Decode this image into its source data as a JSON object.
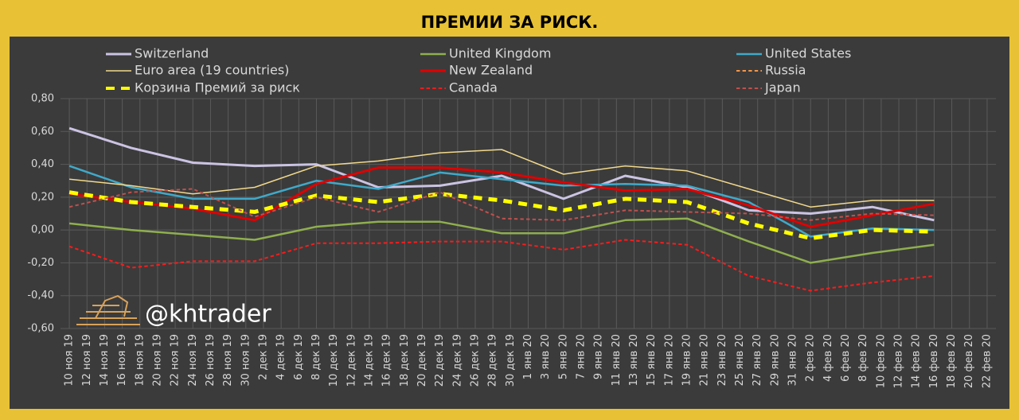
{
  "chart_data": {
    "type": "line",
    "title": "ПРЕМИИ ЗА РИСК.",
    "watermark": "@khtrader",
    "x": [
      0,
      7,
      14,
      21,
      28,
      35,
      42,
      49,
      56,
      63,
      70,
      77,
      84,
      91,
      98
    ],
    "xlim": [
      -1,
      105
    ],
    "xticks": [
      {
        "value": 0,
        "label": "10 ноя 19"
      },
      {
        "value": 2,
        "label": "12 ноя 19"
      },
      {
        "value": 4,
        "label": "14 ноя 19"
      },
      {
        "value": 6,
        "label": "16 ноя 19"
      },
      {
        "value": 8,
        "label": "18 ноя 19"
      },
      {
        "value": 10,
        "label": "20 ноя 19"
      },
      {
        "value": 12,
        "label": "22 ноя 19"
      },
      {
        "value": 14,
        "label": "24 ноя 19"
      },
      {
        "value": 16,
        "label": "26 ноя 19"
      },
      {
        "value": 18,
        "label": "28 ноя 19"
      },
      {
        "value": 20,
        "label": "30 ноя 19"
      },
      {
        "value": 22,
        "label": "2 дек 19"
      },
      {
        "value": 24,
        "label": "4 дек 19"
      },
      {
        "value": 26,
        "label": "6 дек 19"
      },
      {
        "value": 28,
        "label": "8 дек 19"
      },
      {
        "value": 30,
        "label": "10 дек 19"
      },
      {
        "value": 32,
        "label": "12 дек 19"
      },
      {
        "value": 34,
        "label": "14 дек 19"
      },
      {
        "value": 36,
        "label": "16 дек 19"
      },
      {
        "value": 38,
        "label": "18 дек 19"
      },
      {
        "value": 40,
        "label": "20 дек 19"
      },
      {
        "value": 42,
        "label": "22 дек 19"
      },
      {
        "value": 44,
        "label": "24 дек 19"
      },
      {
        "value": 46,
        "label": "26 дек 19"
      },
      {
        "value": 48,
        "label": "28 дек 19"
      },
      {
        "value": 50,
        "label": "30 дек 19"
      },
      {
        "value": 52,
        "label": "1 янв 20"
      },
      {
        "value": 54,
        "label": "3 янв 20"
      },
      {
        "value": 56,
        "label": "5 янв 20"
      },
      {
        "value": 58,
        "label": "7 янв 20"
      },
      {
        "value": 60,
        "label": "9 янв 20"
      },
      {
        "value": 62,
        "label": "11 янв 20"
      },
      {
        "value": 64,
        "label": "13 янв 20"
      },
      {
        "value": 66,
        "label": "15 янв 20"
      },
      {
        "value": 68,
        "label": "17 янв 20"
      },
      {
        "value": 70,
        "label": "19 янв 20"
      },
      {
        "value": 72,
        "label": "21 янв 20"
      },
      {
        "value": 74,
        "label": "23 янв 20"
      },
      {
        "value": 76,
        "label": "25 янв 20"
      },
      {
        "value": 78,
        "label": "27 янв 20"
      },
      {
        "value": 80,
        "label": "29 янв 20"
      },
      {
        "value": 82,
        "label": "31 янв 20"
      },
      {
        "value": 84,
        "label": "2 фев 20"
      },
      {
        "value": 86,
        "label": "4 фев 20"
      },
      {
        "value": 88,
        "label": "6 фев 20"
      },
      {
        "value": 90,
        "label": "8 фев 20"
      },
      {
        "value": 92,
        "label": "10 фев 20"
      },
      {
        "value": 94,
        "label": "12 фев 20"
      },
      {
        "value": 96,
        "label": "14 фев 20"
      },
      {
        "value": 98,
        "label": "16 фев 20"
      },
      {
        "value": 100,
        "label": "18 фев 20"
      },
      {
        "value": 102,
        "label": "20 фев 20"
      },
      {
        "value": 104,
        "label": "22 фев 20"
      }
    ],
    "ylim": [
      -0.6,
      0.8
    ],
    "yticks": [
      {
        "value": 0.8,
        "label": "0,80"
      },
      {
        "value": 0.6,
        "label": "0,60"
      },
      {
        "value": 0.4,
        "label": "0,40"
      },
      {
        "value": 0.2,
        "label": "0,20"
      },
      {
        "value": 0,
        "label": "0,00"
      },
      {
        "value": -0.2,
        "label": "-0,20"
      },
      {
        "value": -0.4,
        "label": "-0,40"
      },
      {
        "value": -0.6,
        "label": "-0,60"
      }
    ],
    "grid": true,
    "legend": "top",
    "series": [
      {
        "name": "Switzerland",
        "color": "#cbc3e3",
        "style": "solid",
        "width": 3,
        "values": [
          0.62,
          0.5,
          0.41,
          0.39,
          0.4,
          0.26,
          0.27,
          0.33,
          0.19,
          0.33,
          0.26,
          0.12,
          0.1,
          0.14,
          0.06
        ]
      },
      {
        "name": "United Kingdom",
        "color": "#8faf4e",
        "style": "solid",
        "width": 2.5,
        "values": [
          0.04,
          0.0,
          -0.03,
          -0.06,
          0.02,
          0.05,
          0.05,
          -0.02,
          -0.02,
          0.06,
          0.07,
          -0.07,
          -0.2,
          -0.14,
          -0.09
        ]
      },
      {
        "name": "United States",
        "color": "#40a9c9",
        "style": "solid",
        "width": 2.5,
        "values": [
          0.39,
          0.26,
          0.19,
          0.19,
          0.3,
          0.25,
          0.35,
          0.31,
          0.27,
          0.28,
          0.27,
          0.17,
          -0.04,
          0.01,
          0.0
        ]
      },
      {
        "name": "Euro area (19 countries)",
        "color": "#f2d98c",
        "style": "solid",
        "width": 1.5,
        "values": [
          0.31,
          0.27,
          0.22,
          0.26,
          0.39,
          0.42,
          0.47,
          0.49,
          0.34,
          0.39,
          0.36,
          0.25,
          0.14,
          0.18,
          0.18
        ]
      },
      {
        "name": "New Zealand",
        "color": "#e00000",
        "style": "solid",
        "width": 3,
        "values": [
          0.22,
          0.17,
          0.13,
          0.06,
          0.28,
          0.38,
          0.38,
          0.35,
          0.29,
          0.24,
          0.25,
          0.15,
          0.02,
          0.09,
          0.16
        ]
      },
      {
        "name": "Russia",
        "color": "#f79646",
        "style": "dashed",
        "width": 2,
        "values": [
          null,
          null,
          null,
          null,
          null,
          null,
          null,
          null,
          null,
          null,
          null,
          null,
          null,
          null,
          null
        ]
      },
      {
        "name": "Корзина Премий за риск",
        "color": "#ffff00",
        "style": "dashed",
        "width": 5,
        "values": [
          0.23,
          0.17,
          0.14,
          0.11,
          0.21,
          0.17,
          0.22,
          0.18,
          0.12,
          0.19,
          0.17,
          0.04,
          -0.05,
          0.0,
          -0.01
        ]
      },
      {
        "name": "Canada",
        "color": "#ff1a1a",
        "style": "dashed",
        "width": 2,
        "values": [
          -0.1,
          -0.23,
          -0.19,
          -0.19,
          -0.08,
          -0.08,
          -0.07,
          -0.07,
          -0.12,
          -0.06,
          -0.09,
          -0.28,
          -0.37,
          -0.32,
          -0.28
        ]
      },
      {
        "name": "Japan",
        "color": "#c0504d",
        "style": "dashed",
        "width": 2,
        "values": [
          0.14,
          0.23,
          0.25,
          0.08,
          0.2,
          0.11,
          0.23,
          0.07,
          0.06,
          0.12,
          0.11,
          0.1,
          0.06,
          0.1,
          0.09
        ]
      }
    ]
  }
}
